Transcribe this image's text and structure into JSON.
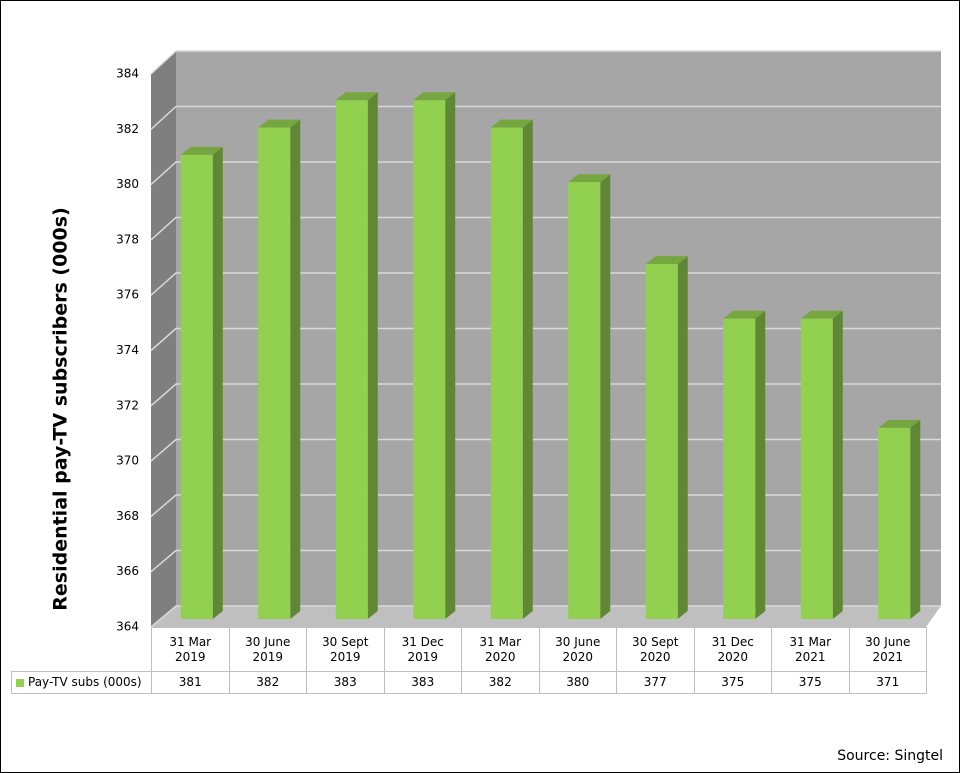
{
  "chart_data": {
    "type": "bar",
    "y_axis_label": "Residential pay-TV subscribers (000s)",
    "categories": [
      "31 Mar 2019",
      "30 June 2019",
      "30 Sept 2019",
      "31 Dec 2019",
      "31 Mar 2020",
      "30 June 2020",
      "30 Sept 2020",
      "31 Dec 2020",
      "31 Mar 2021",
      "30 June 2021"
    ],
    "series": [
      {
        "name": "Pay-TV subs (000s)",
        "color": "#92d050",
        "values": [
          381,
          382,
          383,
          383,
          382,
          380,
          377,
          375,
          375,
          371
        ]
      }
    ],
    "ylim": [
      364,
      384
    ],
    "yticks": [
      364,
      366,
      368,
      370,
      372,
      374,
      376,
      378,
      380,
      382,
      384
    ],
    "grid": true,
    "source": "Source: Singtel"
  }
}
